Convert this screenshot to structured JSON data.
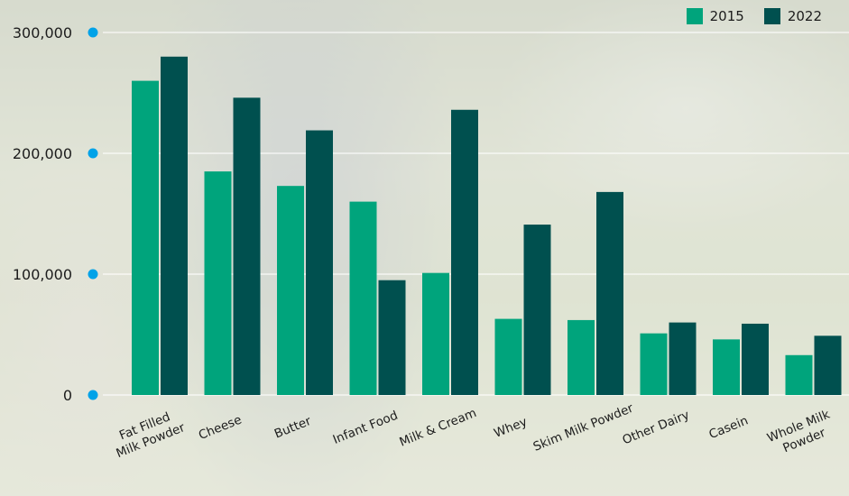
{
  "chart_data": {
    "type": "bar",
    "title": "",
    "xlabel": "",
    "ylabel": "",
    "ylim": [
      0,
      300000
    ],
    "yticks": [
      0,
      100000,
      200000,
      300000
    ],
    "ytick_labels": [
      "0",
      "100,000",
      "200,000",
      "300,000"
    ],
    "grid": true,
    "legend_position": "top-right",
    "categories": [
      [
        "Fat Filled",
        "Milk Powder"
      ],
      [
        "Cheese"
      ],
      [
        "Butter"
      ],
      [
        "Infant Food"
      ],
      [
        "Milk & Cream"
      ],
      [
        "Whey"
      ],
      [
        "Skim Milk Powder"
      ],
      [
        "Other Dairy"
      ],
      [
        "Casein"
      ],
      [
        "Whole Milk",
        "Powder"
      ]
    ],
    "series": [
      {
        "name": "2015",
        "color": "#00a47c",
        "values": [
          260000,
          185000,
          173000,
          160000,
          101000,
          63000,
          62000,
          51000,
          46000,
          33000
        ]
      },
      {
        "name": "2022",
        "color": "#00504f",
        "values": [
          280000,
          246000,
          219000,
          95000,
          236000,
          141000,
          168000,
          60000,
          59000,
          49000
        ]
      }
    ]
  }
}
